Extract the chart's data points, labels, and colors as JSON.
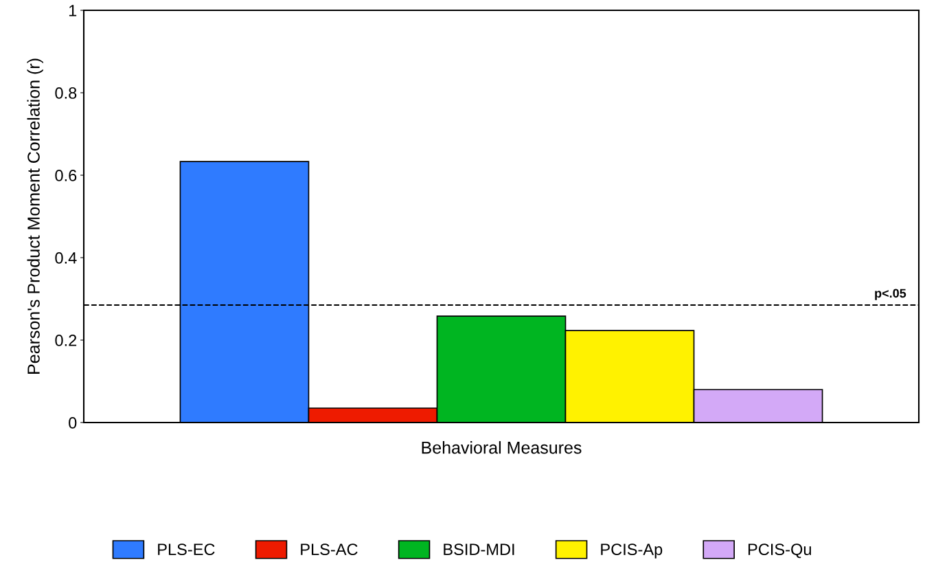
{
  "chart_data": {
    "type": "bar",
    "xlabel": "Behavioral Measures",
    "ylabel": "Pearson's Product Moment Correlation (r)",
    "categories": [
      null
    ],
    "series": [
      {
        "name": "PLS-EC",
        "color": "#2f7bff",
        "values": [
          0.633
        ]
      },
      {
        "name": "PLS-AC",
        "color": "#ee1b00",
        "values": [
          0.035
        ]
      },
      {
        "name": "BSID-MDI",
        "color": "#00b521",
        "values": [
          0.258
        ]
      },
      {
        "name": "PCIS-Ap",
        "color": "#fff200",
        "values": [
          0.223
        ]
      },
      {
        "name": "PCIS-Qu",
        "color": "#d3a9f7",
        "values": [
          0.08
        ]
      }
    ],
    "ylim": [
      0,
      1
    ],
    "yticks": [
      0,
      0.2,
      0.4,
      0.6,
      0.8,
      1
    ],
    "ref_lines": [
      {
        "axis": "y",
        "value": 0.285,
        "label": "p<.05",
        "color": "#000000",
        "line_style": "dashed"
      }
    ],
    "grid": false,
    "legend": "bottom"
  }
}
